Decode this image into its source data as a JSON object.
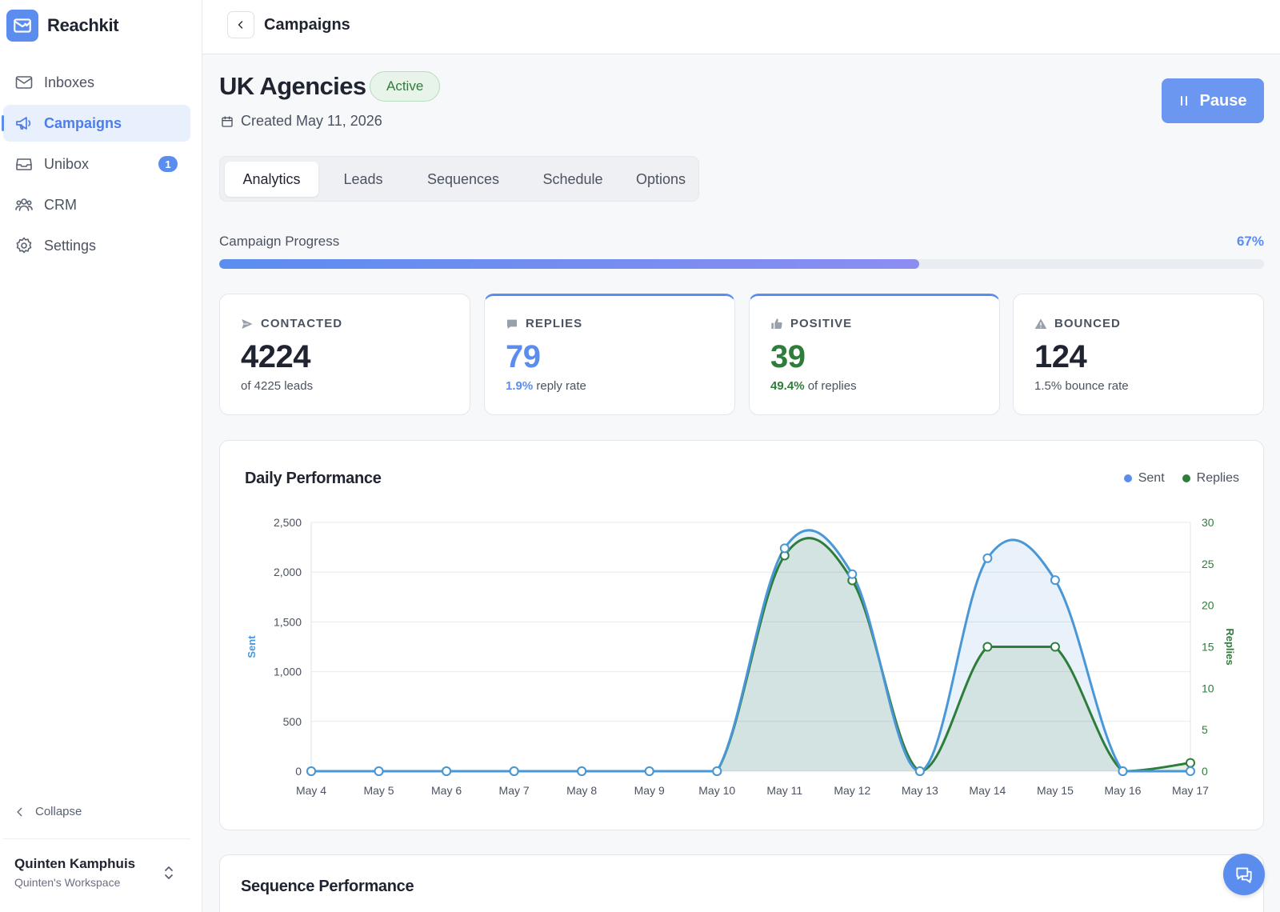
{
  "app": {
    "name": "Reachkit"
  },
  "sidebar": {
    "items": [
      {
        "label": "Inboxes",
        "icon": "mail-icon"
      },
      {
        "label": "Campaigns",
        "icon": "megaphone-icon",
        "active": true
      },
      {
        "label": "Unibox",
        "icon": "inbox-icon",
        "badge": "1"
      },
      {
        "label": "CRM",
        "icon": "users-icon"
      },
      {
        "label": "Settings",
        "icon": "gear-icon"
      }
    ],
    "collapse_label": "Collapse",
    "user": {
      "name": "Quinten Kamphuis",
      "workspace": "Quinten's Workspace"
    }
  },
  "topbar": {
    "title": "Campaigns"
  },
  "campaign": {
    "title": "UK Agencies",
    "status": "Active",
    "created": "Created May 11, 2026",
    "pause_label": "Pause"
  },
  "tabs": [
    {
      "label": "Analytics",
      "active": true
    },
    {
      "label": "Leads"
    },
    {
      "label": "Sequences"
    },
    {
      "label": "Schedule"
    },
    {
      "label": "Options"
    }
  ],
  "progress": {
    "label": "Campaign Progress",
    "value_text": "67%",
    "fraction": 0.67
  },
  "stats": {
    "contacted": {
      "label": "CONTACTED",
      "value": "4224",
      "sub": "of 4225 leads"
    },
    "replies": {
      "label": "REPLIES",
      "value": "79",
      "sub_highlight": "1.9%",
      "sub": " reply rate"
    },
    "positive": {
      "label": "POSITIVE",
      "value": "39",
      "sub_highlight": "49.4%",
      "sub": " of replies"
    },
    "bounced": {
      "label": "BOUNCED",
      "value": "124",
      "sub": "1.5% bounce rate"
    }
  },
  "colors": {
    "accent": "#5b8def",
    "sent": "#4a97d8",
    "replies": "#2f7d3b",
    "positive": "#2f7d3b"
  },
  "chart": {
    "title": "Daily Performance",
    "legend": {
      "sent": "Sent",
      "replies": "Replies"
    }
  },
  "chart_data": {
    "type": "line",
    "title": "Daily Performance",
    "x": [
      "May 4",
      "May 5",
      "May 6",
      "May 7",
      "May 8",
      "May 9",
      "May 10",
      "May 11",
      "May 12",
      "May 13",
      "May 14",
      "May 15",
      "May 16",
      "May 17"
    ],
    "series": [
      {
        "name": "Sent",
        "axis": "left",
        "values": [
          0,
          0,
          0,
          0,
          0,
          0,
          0,
          2240,
          1980,
          0,
          2140,
          1920,
          0,
          0
        ]
      },
      {
        "name": "Replies",
        "axis": "right",
        "values": [
          0,
          0,
          0,
          0,
          0,
          0,
          0,
          26,
          23,
          0,
          15,
          15,
          0,
          1
        ]
      }
    ],
    "ylabel": "Sent",
    "y2label": "Replies",
    "ylim": [
      0,
      2500
    ],
    "y2lim": [
      0,
      30
    ],
    "yticks": [
      0,
      500,
      1000,
      1500,
      2000,
      2500
    ],
    "y2ticks": [
      0,
      5,
      10,
      15,
      20,
      25,
      30
    ],
    "grid": true,
    "legend_position": "top-right"
  },
  "sequence": {
    "title": "Sequence Performance"
  }
}
